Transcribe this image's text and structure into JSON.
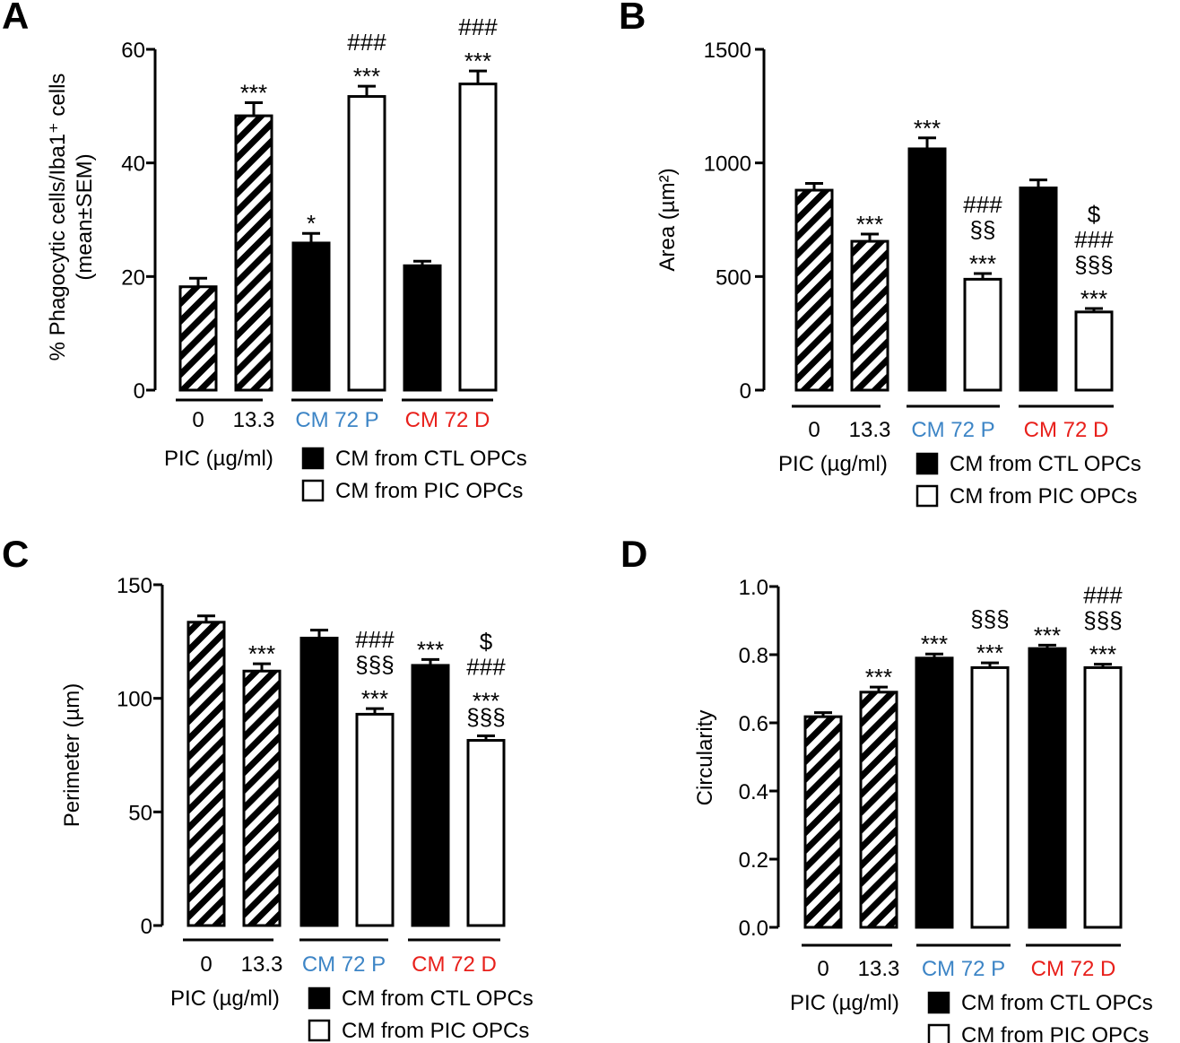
{
  "colors": {
    "cm72p": "#3d85c6",
    "cm72d": "#e8201b",
    "filled": "#000000",
    "open": "#ffffff"
  },
  "legend": {
    "pic_label": "PIC (µg/ml)",
    "ctl_label": "CM from CTL OPCs",
    "pic_opc_label": "CM from PIC OPCs"
  },
  "chart_data": [
    {
      "type": "bar",
      "panel": "A",
      "ylabel_line1": "% Phagocytic cells/Iba1⁺ cells",
      "ylabel_line2": "(mean±SEM)",
      "ylim": [
        0,
        60
      ],
      "yticks": [
        0,
        20,
        40,
        60
      ],
      "tick_labels": [
        "0",
        "20",
        "40",
        "60"
      ],
      "categories": [
        "0",
        "13.3",
        "CM 72 P (CTL)",
        "CM 72 P (PIC)",
        "CM 72 D (CTL)",
        "CM 72 D (PIC)"
      ],
      "fills": [
        "hatch",
        "hatch",
        "black",
        "white",
        "black",
        "white"
      ],
      "values": [
        18.2,
        48.3,
        25.9,
        51.7,
        21.9,
        53.9
      ],
      "errors": [
        1.5,
        2.3,
        1.7,
        1.8,
        0.8,
        2.3
      ],
      "annotations": [
        [],
        [
          "***"
        ],
        [
          "*"
        ],
        [
          "***",
          "###"
        ],
        [],
        [
          "***",
          "###"
        ]
      ],
      "groups": [
        "0",
        "13.3",
        "CM  72 P",
        "CM  72 D"
      ]
    },
    {
      "type": "bar",
      "panel": "B",
      "ylabel": "Area (µm²)",
      "ylim": [
        0,
        1500
      ],
      "yticks": [
        0,
        500,
        1000,
        1500
      ],
      "tick_labels": [
        "0",
        "500",
        "1000",
        "1500"
      ],
      "categories": [
        "0",
        "13.3",
        "CM 72 P (CTL)",
        "CM 72 P (PIC)",
        "CM 72 D (CTL)",
        "CM 72 D (PIC)"
      ],
      "fills": [
        "hatch",
        "hatch",
        "black",
        "white",
        "black",
        "white"
      ],
      "values": [
        880,
        655,
        1062,
        488,
        890,
        344
      ],
      "errors": [
        30,
        32,
        48,
        25,
        35,
        15
      ],
      "annotations": [
        [],
        [
          "***"
        ],
        [
          "***"
        ],
        [
          "***",
          "§§",
          "###"
        ],
        [],
        [
          "***",
          "§§§",
          "###",
          "$"
        ]
      ],
      "groups": [
        "0",
        "13.3",
        "CM  72 P",
        "CM  72 D"
      ]
    },
    {
      "type": "bar",
      "panel": "C",
      "ylabel": "Perimeter (µm)",
      "ylim": [
        0,
        150
      ],
      "yticks": [
        0,
        50,
        100,
        150
      ],
      "tick_labels": [
        "0",
        "50",
        "100",
        "150"
      ],
      "categories": [
        "0",
        "13.3",
        "CM 72 P (CTL)",
        "CM 72 P (PIC)",
        "CM 72 D (CTL)",
        "CM 72 D (PIC)"
      ],
      "fills": [
        "hatch",
        "hatch",
        "black",
        "white",
        "black",
        "white"
      ],
      "values": [
        133.5,
        112,
        126.5,
        93,
        114.5,
        81.5
      ],
      "errors": [
        2.8,
        3.2,
        3.5,
        2.5,
        2.6,
        2.0
      ],
      "annotations": [
        [],
        [
          "***"
        ],
        [],
        [
          "***",
          "§§§",
          "###"
        ],
        [
          "***"
        ],
        [
          "§§§",
          "***",
          "###",
          "$"
        ]
      ],
      "groups": [
        "0",
        "13.3",
        "CM  72 P",
        "CM  72 D"
      ]
    },
    {
      "type": "bar",
      "panel": "D",
      "ylabel": "Circularity",
      "ylim": [
        0,
        1.0
      ],
      "yticks": [
        0,
        0.2,
        0.4,
        0.6,
        0.8,
        1.0
      ],
      "tick_labels": [
        "0.0",
        "0.2",
        "0.4",
        "0.6",
        "0.8",
        "1.0"
      ],
      "categories": [
        "0",
        "13.3",
        "CM 72 P (CTL)",
        "CM 72 P (PIC)",
        "CM 72 D (CTL)",
        "CM 72 D (PIC)"
      ],
      "fills": [
        "hatch",
        "hatch",
        "black",
        "white",
        "black",
        "white"
      ],
      "values": [
        0.618,
        0.69,
        0.79,
        0.762,
        0.818,
        0.762
      ],
      "errors": [
        0.012,
        0.015,
        0.012,
        0.014,
        0.01,
        0.01
      ],
      "annotations": [
        [],
        [
          "***"
        ],
        [
          "***"
        ],
        [
          "***",
          "§§§"
        ],
        [
          "***"
        ],
        [
          "***",
          "§§§",
          "###"
        ]
      ],
      "groups": [
        "0",
        "13.3",
        "CM  72 P",
        "CM  72 D"
      ]
    }
  ]
}
